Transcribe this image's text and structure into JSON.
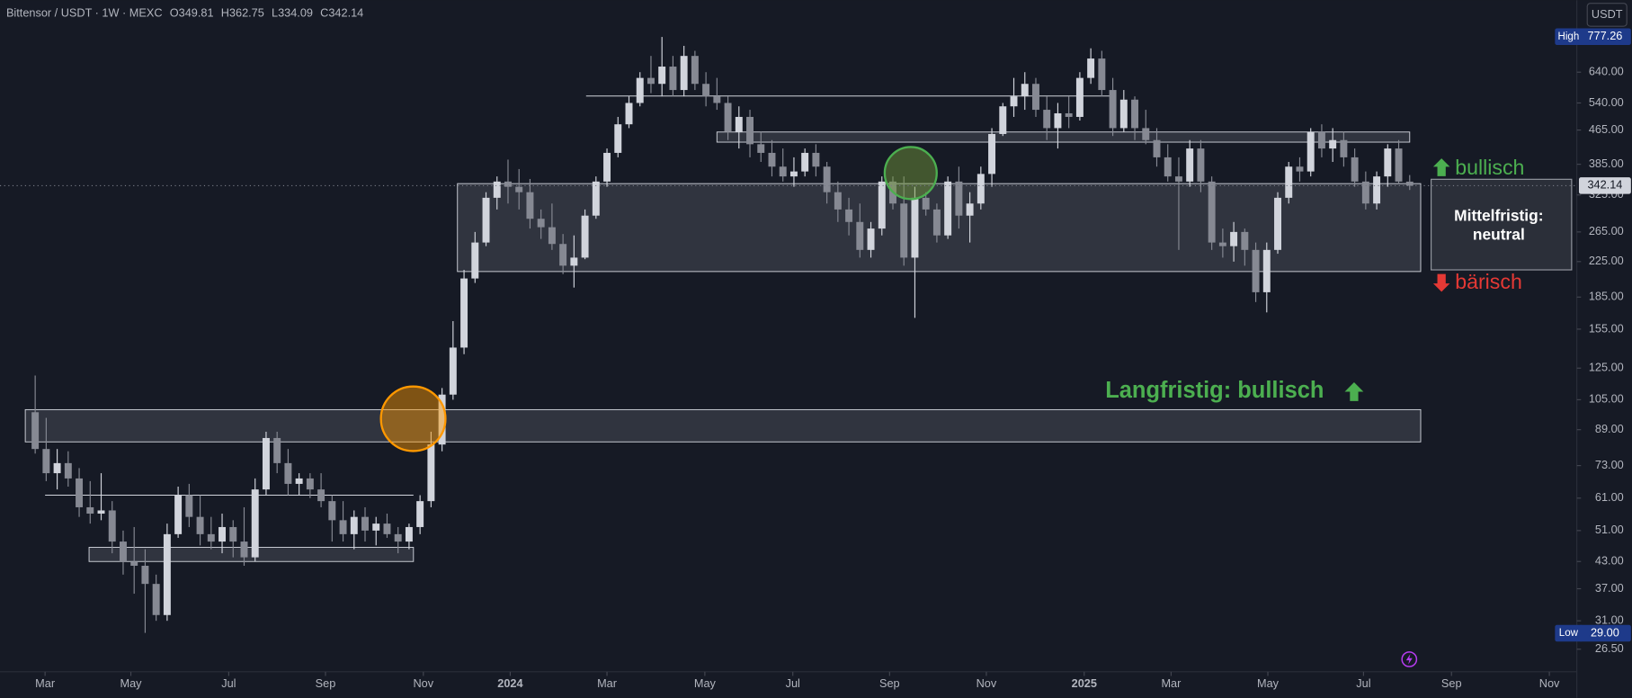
{
  "chart_data": {
    "type": "candlestick",
    "symbol": "Bittensor / USDT · 1W · MEXC",
    "ohlc_letters": [
      "O",
      "H",
      "L",
      "C"
    ],
    "currency": "USDT",
    "up_color": "#d1d4dc",
    "down_color": "#868993",
    "log_scale": true,
    "open": [
      98,
      80,
      70,
      74,
      68,
      58,
      56,
      57,
      48,
      43,
      42,
      38,
      32,
      50,
      62,
      55,
      50,
      48,
      52,
      48,
      44,
      64,
      85,
      74,
      66,
      68,
      64,
      60,
      54,
      50,
      55,
      51,
      53,
      50,
      48,
      52,
      60,
      82,
      108,
      140,
      205,
      250,
      320,
      350,
      340,
      330,
      285,
      272,
      248,
      220,
      230,
      290,
      350,
      410,
      480,
      540,
      620,
      600,
      660,
      580,
      700,
      600,
      560,
      540,
      460,
      500,
      430,
      410,
      380,
      360,
      370,
      410,
      380,
      330,
      300,
      280,
      240,
      270,
      350,
      310,
      230,
      320,
      300,
      260,
      350,
      290,
      310,
      365,
      455,
      530,
      560,
      600,
      520,
      470,
      510,
      500,
      620,
      690,
      580,
      470,
      550,
      470,
      440,
      400,
      360,
      350,
      420,
      350,
      250,
      245,
      265,
      240,
      190,
      240,
      320,
      380,
      370,
      460,
      420,
      440,
      400,
      350,
      310,
      360,
      420,
      349.81
    ],
    "high": [
      120,
      95,
      80,
      79,
      72,
      67,
      70,
      60,
      51,
      52,
      46,
      40,
      53,
      65,
      66,
      62,
      55,
      56,
      54,
      58,
      68,
      88,
      88,
      80,
      70,
      70,
      70,
      62,
      60,
      57,
      58,
      55,
      56,
      52,
      53,
      62,
      88,
      112,
      162,
      215,
      265,
      330,
      360,
      395,
      375,
      355,
      300,
      310,
      262,
      260,
      300,
      360,
      420,
      500,
      560,
      640,
      700,
      777.26,
      700,
      740,
      720,
      640,
      620,
      560,
      530,
      520,
      460,
      440,
      420,
      400,
      420,
      430,
      390,
      350,
      320,
      310,
      280,
      360,
      360,
      360,
      340,
      330,
      310,
      360,
      380,
      330,
      380,
      470,
      540,
      620,
      640,
      620,
      560,
      540,
      560,
      640,
      730,
      720,
      620,
      580,
      560,
      520,
      470,
      430,
      400,
      440,
      440,
      360,
      270,
      280,
      270,
      250,
      250,
      330,
      390,
      400,
      470,
      480,
      470,
      460,
      420,
      370,
      370,
      430,
      440,
      362.75
    ],
    "low": [
      78,
      67,
      64,
      65,
      55,
      53,
      54,
      45,
      40,
      36,
      29,
      31,
      31,
      49,
      52,
      47,
      46,
      45,
      44,
      42,
      43,
      62,
      70,
      62,
      62,
      61,
      58,
      48,
      48,
      46,
      48,
      47,
      49,
      45,
      46,
      50,
      58,
      79,
      105,
      135,
      200,
      245,
      300,
      310,
      300,
      270,
      255,
      240,
      210,
      195,
      228,
      285,
      340,
      400,
      470,
      530,
      570,
      560,
      560,
      560,
      580,
      530,
      520,
      440,
      420,
      400,
      390,
      360,
      350,
      340,
      360,
      360,
      310,
      280,
      260,
      230,
      230,
      260,
      300,
      220,
      165,
      290,
      250,
      255,
      270,
      250,
      300,
      340,
      450,
      500,
      520,
      500,
      440,
      420,
      470,
      490,
      600,
      560,
      450,
      460,
      440,
      430,
      380,
      350,
      240,
      340,
      330,
      240,
      230,
      225,
      220,
      180,
      170,
      235,
      310,
      350,
      360,
      400,
      390,
      380,
      340,
      300,
      300,
      340,
      345,
      334.09
    ],
    "close": [
      80,
      70,
      74,
      68,
      58,
      56,
      57,
      48,
      43,
      42,
      38,
      32,
      50,
      62,
      55,
      50,
      48,
      52,
      48,
      44,
      64,
      85,
      74,
      66,
      68,
      64,
      60,
      54,
      50,
      55,
      51,
      53,
      50,
      48,
      52,
      60,
      82,
      108,
      140,
      205,
      250,
      320,
      350,
      340,
      330,
      285,
      272,
      248,
      220,
      230,
      290,
      350,
      410,
      480,
      540,
      620,
      600,
      660,
      580,
      700,
      600,
      560,
      540,
      460,
      500,
      430,
      410,
      380,
      360,
      370,
      410,
      380,
      330,
      300,
      280,
      240,
      270,
      350,
      310,
      230,
      320,
      300,
      260,
      350,
      290,
      310,
      365,
      455,
      530,
      560,
      600,
      520,
      470,
      510,
      500,
      620,
      690,
      580,
      470,
      550,
      470,
      440,
      400,
      360,
      350,
      420,
      350,
      250,
      245,
      265,
      240,
      190,
      240,
      320,
      380,
      370,
      460,
      420,
      440,
      400,
      350,
      310,
      360,
      420,
      350,
      342.14
    ],
    "high_marker": {
      "label": "High",
      "index": 57
    },
    "low_marker": {
      "label": "Low",
      "index": 10,
      "value_label": "29.00"
    },
    "xlim": [
      -3.2,
      140.2
    ],
    "ylim": [
      23.4,
      952
    ],
    "xticks": [
      {
        "value": 0.9,
        "label": "Mar"
      },
      {
        "value": 8.7,
        "label": "May"
      },
      {
        "value": 17.6,
        "label": "Jul"
      },
      {
        "value": 26.4,
        "label": "Sep"
      },
      {
        "value": 35.3,
        "label": "Nov"
      },
      {
        "value": 43.2,
        "label": "2024"
      },
      {
        "value": 52.0,
        "label": "Mar"
      },
      {
        "value": 60.9,
        "label": "May"
      },
      {
        "value": 68.9,
        "label": "Jul"
      },
      {
        "value": 77.7,
        "label": "Sep"
      },
      {
        "value": 86.5,
        "label": "Nov"
      },
      {
        "value": 95.4,
        "label": "2025"
      },
      {
        "value": 103.3,
        "label": "Mar"
      },
      {
        "value": 112.1,
        "label": "May"
      },
      {
        "value": 120.8,
        "label": "Jul"
      },
      {
        "value": 128.8,
        "label": "Sep"
      },
      {
        "value": 137.7,
        "label": "Nov"
      }
    ],
    "yticks": [
      {
        "value": 640,
        "label": "640.00"
      },
      {
        "value": 540,
        "label": "540.00"
      },
      {
        "value": 465,
        "label": "465.00"
      },
      {
        "value": 385,
        "label": "385.00"
      },
      {
        "value": 325,
        "label": "325.00"
      },
      {
        "value": 265,
        "label": "265.00"
      },
      {
        "value": 225,
        "label": "225.00"
      },
      {
        "value": 185,
        "label": "185.00"
      },
      {
        "value": 155,
        "label": "155.00"
      },
      {
        "value": 125,
        "label": "125.00"
      },
      {
        "value": 105,
        "label": "105.00"
      },
      {
        "value": 89,
        "label": "89.00"
      },
      {
        "value": 73,
        "label": "73.00"
      },
      {
        "value": 61,
        "label": "61.00"
      },
      {
        "value": 51,
        "label": "51.00"
      },
      {
        "value": 43,
        "label": "43.00"
      },
      {
        "value": 37,
        "label": "37.00"
      },
      {
        "value": 31,
        "label": "31.00"
      },
      {
        "value": 26.5,
        "label": "26.50"
      }
    ],
    "zones": [
      {
        "x": [
          4.9,
          34.4
        ],
        "y": [
          43,
          46.5
        ]
      },
      {
        "x": [
          -0.9,
          126
        ],
        "y": [
          83.2,
          99.4
        ]
      },
      {
        "x": [
          38.4,
          126
        ],
        "y": [
          213,
          346
        ]
      },
      {
        "x": [
          62,
          125
        ],
        "y": [
          435,
          460
        ]
      }
    ],
    "levels": [
      {
        "x": [
          0.9,
          34.4
        ],
        "y": 62
      },
      {
        "x": [
          50.1,
          98.3
        ],
        "y": 561
      }
    ],
    "annotations": {
      "long_term": "Langfristig: bullisch",
      "bullish": "bullisch",
      "bearish": "bärisch",
      "mid_term": [
        "Mittelfristig:",
        "neutral"
      ]
    }
  }
}
